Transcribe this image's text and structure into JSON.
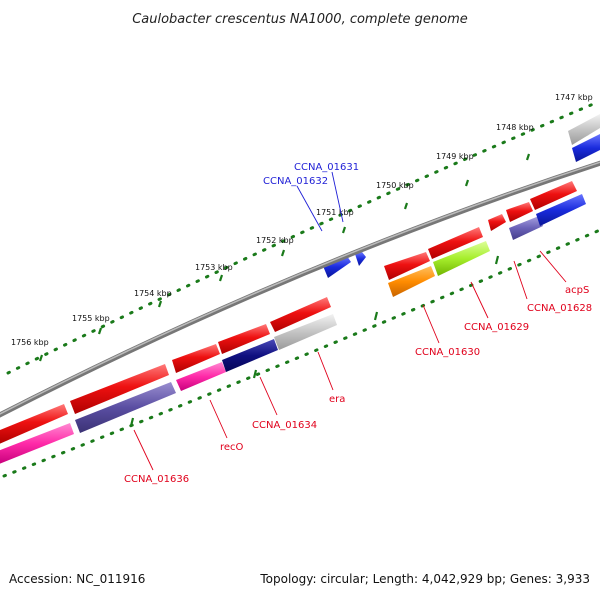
{
  "title": "Caulobacter crescentus NA1000, complete genome",
  "footer": {
    "accession": "Accession: NC_011916",
    "summary": "Topology: circular; Length: 4,042,929 bp; Genes: 3,933"
  },
  "ruler_labels": [
    "1747 kbp",
    "1748 kbp",
    "1749 kbp",
    "1750 kbp",
    "1751 kbp",
    "1752 kbp",
    "1753 kbp",
    "1754 kbp",
    "1755 kbp",
    "1756 kbp"
  ],
  "gene_labels": {
    "CCNA_01631": "CCNA_01631",
    "CCNA_01632": "CCNA_01632",
    "acpS": "acpS",
    "CCNA_01628": "CCNA_01628",
    "CCNA_01629": "CCNA_01629",
    "CCNA_01630": "CCNA_01630",
    "era": "era",
    "CCNA_01634": "CCNA_01634",
    "recO": "recO",
    "CCNA_01636": "CCNA_01636"
  },
  "colors": {
    "cds": "#ee1111",
    "backbone": "#888888",
    "tick": "#1a7a1a",
    "blue_gene": "#1a2bdd"
  }
}
